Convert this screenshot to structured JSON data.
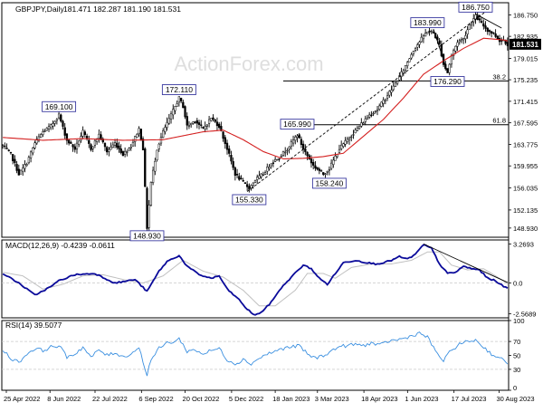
{
  "chart_data": {
    "type": "line",
    "header": {
      "label": "GBPJPY,Daily",
      "values": "181.471 182.287 181.190 181.531"
    },
    "watermark": "ActionForex.com",
    "colors": {
      "background": "#ffffff",
      "frame": "#000000",
      "grid": "#c8c8c8",
      "price": "#000000",
      "ma": "#d42020",
      "fib_line": "#000000",
      "trendline": "#000000",
      "macd": "#0a0a9a",
      "signal": "#c0c0c0",
      "rsi": "#3a8fe0",
      "label_border": "#3a3aa0",
      "watermark": "#dedede",
      "last_price_bg": "#000000",
      "last_price_text": "#ffffff"
    },
    "price_panel": {
      "ylim": [
        147.3,
        188.9
      ],
      "y_ticks": [
        "186.750",
        "182.935",
        "179.015",
        "175.235",
        "171.415",
        "167.595",
        "163.775",
        "159.955",
        "156.035",
        "152.135",
        "148.930"
      ],
      "last_price": "181.531",
      "fib_levels": [
        {
          "label": "38.2",
          "value": 175.02
        },
        {
          "label": "61.8",
          "value": 167.26
        }
      ],
      "swing_labels": [
        {
          "text": "172.110",
          "x": 88,
          "y": 172.11,
          "pos": "above"
        },
        {
          "text": "169.100",
          "x": 28,
          "y": 169.1,
          "pos": "above"
        },
        {
          "text": "148.930",
          "x": 72,
          "y": 148.93,
          "pos": "below"
        },
        {
          "text": "155.330",
          "x": 123,
          "y": 155.33,
          "pos": "below"
        },
        {
          "text": "165.990",
          "x": 147,
          "y": 165.99,
          "pos": "above"
        },
        {
          "text": "158.240",
          "x": 163,
          "y": 158.24,
          "pos": "below"
        },
        {
          "text": "183.990",
          "x": 212,
          "y": 183.99,
          "pos": "above"
        },
        {
          "text": "176.290",
          "x": 222,
          "y": 176.29,
          "pos": "below"
        },
        {
          "text": "186.750",
          "x": 236,
          "y": 186.75,
          "pos": "above"
        }
      ],
      "trendlines": [
        {
          "from": [
            122,
            155.4
          ],
          "to": [
            241,
            187.3
          ]
        },
        {
          "from": [
            215,
            184.2
          ],
          "to": [
            222,
            176.6
          ]
        },
        {
          "from": [
            236,
            186.9
          ],
          "to": [
            249,
            184.4
          ]
        }
      ]
    },
    "macd_panel": {
      "label": "MACD(12,26,9) -0.4239 -0.0611",
      "ylim": [
        -2.9,
        3.6
      ],
      "y_ticks": [
        "3.2693",
        "0.0",
        "-2.5689"
      ],
      "zero_value": 0.0,
      "trendline": {
        "from": [
          210,
          3.27
        ],
        "to": [
          252,
          0.05
        ]
      }
    },
    "rsi_panel": {
      "label": "RSI(14) 39.5077",
      "ylim": [
        0,
        100
      ],
      "y_ticks": [
        "100",
        "70",
        "50",
        "30",
        "0"
      ],
      "levels": [
        30,
        70
      ]
    },
    "x_ticks": [
      {
        "label": "25 Apr 2022",
        "x": 0
      },
      {
        "label": "8 Jun 2022",
        "x": 31
      },
      {
        "label": "22 Jul 2022",
        "x": 63
      },
      {
        "label": "6 Sep 2022",
        "x": 96
      },
      {
        "label": "20 Oct 2022",
        "x": 127
      },
      {
        "label": "5 Dec 2022",
        "x": 160
      },
      {
        "label": "18 Jan 2023",
        "x": 191
      },
      {
        "label": "3 Mar 2023",
        "x": 221
      },
      {
        "label": "18 Apr 2023",
        "x": 254
      },
      {
        "label": "1 Jun 2023",
        "x": 285
      },
      {
        "label": "17 Jul 2023",
        "x": 318
      },
      {
        "label": "30 Aug 2023",
        "x": 350
      }
    ],
    "price_anchors": [
      [
        0,
        163.5
      ],
      [
        4,
        162.0
      ],
      [
        8,
        158.5
      ],
      [
        12,
        160.5
      ],
      [
        16,
        164.0
      ],
      [
        20,
        166.0
      ],
      [
        24,
        167.0
      ],
      [
        28,
        169.0
      ],
      [
        32,
        164.5
      ],
      [
        36,
        163.0
      ],
      [
        40,
        166.0
      ],
      [
        44,
        163.0
      ],
      [
        48,
        165.5
      ],
      [
        52,
        162.5
      ],
      [
        56,
        164.0
      ],
      [
        60,
        162.0
      ],
      [
        64,
        163.5
      ],
      [
        68,
        166.5
      ],
      [
        70,
        163.0
      ],
      [
        72,
        149.0
      ],
      [
        74,
        157.0
      ],
      [
        77,
        163.0
      ],
      [
        80,
        166.0
      ],
      [
        84,
        169.0
      ],
      [
        88,
        172.0
      ],
      [
        90,
        170.5
      ],
      [
        92,
        167.0
      ],
      [
        96,
        168.0
      ],
      [
        100,
        166.5
      ],
      [
        104,
        168.5
      ],
      [
        108,
        167.0
      ],
      [
        112,
        163.0
      ],
      [
        116,
        158.5
      ],
      [
        120,
        157.0
      ],
      [
        123,
        156.0
      ],
      [
        126,
        157.5
      ],
      [
        130,
        158.5
      ],
      [
        134,
        160.5
      ],
      [
        138,
        161.5
      ],
      [
        142,
        163.0
      ],
      [
        147,
        165.5
      ],
      [
        150,
        163.0
      ],
      [
        155,
        160.0
      ],
      [
        160,
        158.5
      ],
      [
        163,
        159.5
      ],
      [
        168,
        163.0
      ],
      [
        173,
        165.0
      ],
      [
        178,
        167.0
      ],
      [
        183,
        169.0
      ],
      [
        187,
        170.0
      ],
      [
        191,
        172.0
      ],
      [
        195,
        174.0
      ],
      [
        200,
        177.0
      ],
      [
        205,
        180.5
      ],
      [
        209,
        182.5
      ],
      [
        212,
        183.9
      ],
      [
        215,
        183.5
      ],
      [
        218,
        181.5
      ],
      [
        220,
        178.0
      ],
      [
        222,
        176.5
      ],
      [
        224,
        179.5
      ],
      [
        227,
        182.0
      ],
      [
        230,
        182.5
      ],
      [
        233,
        185.0
      ],
      [
        236,
        186.5
      ],
      [
        239,
        185.2
      ],
      [
        242,
        184.0
      ],
      [
        245,
        183.4
      ],
      [
        248,
        182.2
      ],
      [
        250,
        182.3
      ],
      [
        252,
        181.5
      ]
    ],
    "ma_anchors": [
      [
        0,
        165.0
      ],
      [
        20,
        164.5
      ],
      [
        40,
        164.8
      ],
      [
        60,
        164.5
      ],
      [
        80,
        164.6
      ],
      [
        100,
        166.0
      ],
      [
        110,
        166.3
      ],
      [
        120,
        164.6
      ],
      [
        130,
        162.5
      ],
      [
        140,
        161.2
      ],
      [
        150,
        161.3
      ],
      [
        160,
        161.6
      ],
      [
        170,
        162.2
      ],
      [
        180,
        165.2
      ],
      [
        190,
        168.2
      ],
      [
        200,
        172.0
      ],
      [
        210,
        176.2
      ],
      [
        220,
        178.6
      ],
      [
        230,
        180.8
      ],
      [
        240,
        182.6
      ],
      [
        250,
        182.3
      ],
      [
        252,
        182.1
      ]
    ],
    "macd_anchors": [
      [
        0,
        0.8
      ],
      [
        8,
        0.0
      ],
      [
        16,
        -1.0
      ],
      [
        24,
        -0.3
      ],
      [
        28,
        0.2
      ],
      [
        36,
        0.7
      ],
      [
        46,
        0.8
      ],
      [
        56,
        0.0
      ],
      [
        66,
        0.3
      ],
      [
        72,
        -0.7
      ],
      [
        78,
        1.0
      ],
      [
        82,
        1.8
      ],
      [
        88,
        2.3
      ],
      [
        92,
        1.4
      ],
      [
        98,
        0.7
      ],
      [
        104,
        0.4
      ],
      [
        108,
        0.6
      ],
      [
        112,
        -0.5
      ],
      [
        118,
        -1.4
      ],
      [
        122,
        -2.2
      ],
      [
        126,
        -2.7
      ],
      [
        130,
        -2.3
      ],
      [
        134,
        -1.6
      ],
      [
        138,
        -0.6
      ],
      [
        144,
        0.5
      ],
      [
        150,
        1.5
      ],
      [
        154,
        1.2
      ],
      [
        158,
        0.4
      ],
      [
        162,
        -0.1
      ],
      [
        166,
        0.8
      ],
      [
        170,
        1.7
      ],
      [
        176,
        1.9
      ],
      [
        182,
        1.7
      ],
      [
        186,
        1.6
      ],
      [
        190,
        1.7
      ],
      [
        194,
        1.9
      ],
      [
        198,
        2.2
      ],
      [
        202,
        2.0
      ],
      [
        206,
        2.4
      ],
      [
        210,
        3.2
      ],
      [
        214,
        2.9
      ],
      [
        218,
        1.6
      ],
      [
        222,
        0.8
      ],
      [
        226,
        0.9
      ],
      [
        230,
        1.4
      ],
      [
        234,
        1.2
      ],
      [
        238,
        1.1
      ],
      [
        242,
        0.4
      ],
      [
        246,
        0.2
      ],
      [
        250,
        -0.3
      ],
      [
        252,
        -0.42
      ]
    ],
    "signal_anchors": [
      [
        0,
        0.9
      ],
      [
        10,
        0.6
      ],
      [
        20,
        -0.5
      ],
      [
        30,
        -0.1
      ],
      [
        40,
        0.6
      ],
      [
        50,
        0.7
      ],
      [
        60,
        0.3
      ],
      [
        70,
        0.0
      ],
      [
        80,
        0.6
      ],
      [
        90,
        1.9
      ],
      [
        100,
        1.0
      ],
      [
        110,
        0.5
      ],
      [
        120,
        -0.6
      ],
      [
        128,
        -1.9
      ],
      [
        136,
        -1.9
      ],
      [
        146,
        -0.6
      ],
      [
        152,
        0.8
      ],
      [
        160,
        0.8
      ],
      [
        166,
        0.4
      ],
      [
        174,
        1.3
      ],
      [
        184,
        1.6
      ],
      [
        194,
        1.6
      ],
      [
        204,
        1.9
      ],
      [
        212,
        2.6
      ],
      [
        218,
        2.6
      ],
      [
        224,
        1.5
      ],
      [
        232,
        1.1
      ],
      [
        240,
        1.2
      ],
      [
        246,
        0.6
      ],
      [
        252,
        -0.06
      ]
    ],
    "rsi_anchors": [
      [
        0,
        58
      ],
      [
        4,
        46
      ],
      [
        8,
        40
      ],
      [
        12,
        52
      ],
      [
        16,
        60
      ],
      [
        20,
        57
      ],
      [
        24,
        62
      ],
      [
        28,
        64
      ],
      [
        32,
        48
      ],
      [
        36,
        52
      ],
      [
        40,
        62
      ],
      [
        44,
        47
      ],
      [
        48,
        58
      ],
      [
        52,
        50
      ],
      [
        56,
        54
      ],
      [
        60,
        48
      ],
      [
        64,
        52
      ],
      [
        68,
        62
      ],
      [
        70,
        40
      ],
      [
        72,
        23
      ],
      [
        74,
        44
      ],
      [
        78,
        60
      ],
      [
        82,
        68
      ],
      [
        86,
        70
      ],
      [
        88,
        74
      ],
      [
        92,
        56
      ],
      [
        96,
        58
      ],
      [
        100,
        52
      ],
      [
        104,
        57
      ],
      [
        108,
        60
      ],
      [
        112,
        44
      ],
      [
        116,
        38
      ],
      [
        120,
        44
      ],
      [
        124,
        38
      ],
      [
        128,
        46
      ],
      [
        132,
        52
      ],
      [
        136,
        56
      ],
      [
        140,
        60
      ],
      [
        144,
        62
      ],
      [
        148,
        64
      ],
      [
        152,
        52
      ],
      [
        156,
        46
      ],
      [
        160,
        50
      ],
      [
        164,
        56
      ],
      [
        168,
        63
      ],
      [
        172,
        64
      ],
      [
        176,
        66
      ],
      [
        180,
        64
      ],
      [
        184,
        68
      ],
      [
        188,
        64
      ],
      [
        192,
        70
      ],
      [
        196,
        72
      ],
      [
        200,
        74
      ],
      [
        204,
        78
      ],
      [
        208,
        82
      ],
      [
        212,
        76
      ],
      [
        216,
        56
      ],
      [
        220,
        42
      ],
      [
        224,
        58
      ],
      [
        228,
        66
      ],
      [
        232,
        70
      ],
      [
        236,
        72
      ],
      [
        240,
        62
      ],
      [
        244,
        52
      ],
      [
        248,
        46
      ],
      [
        252,
        39.5
      ]
    ]
  }
}
